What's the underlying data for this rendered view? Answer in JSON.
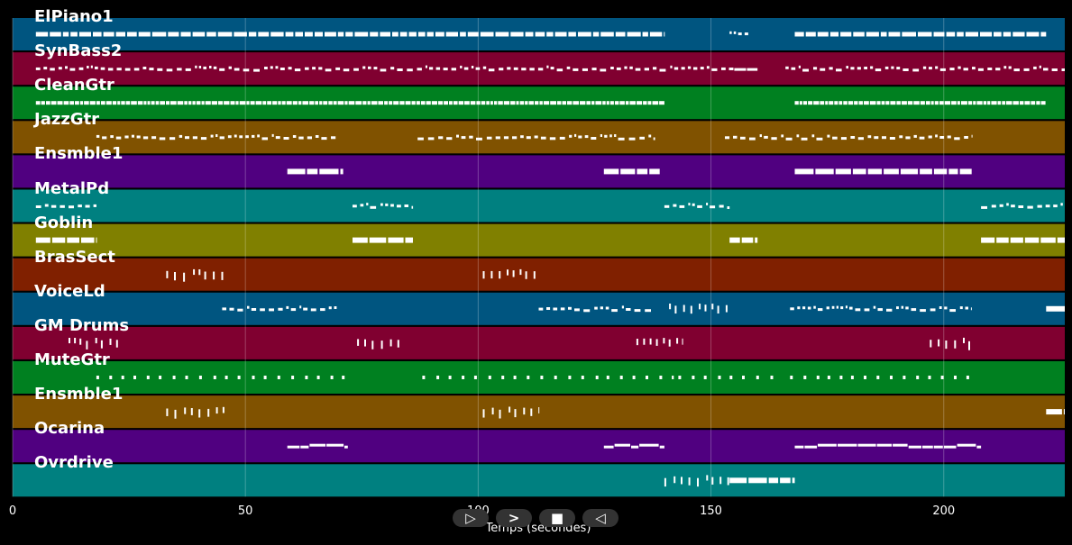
{
  "chart_data": {
    "type": "piano-roll",
    "xlabel": "Temps (secondes)",
    "xlim": [
      0,
      226
    ],
    "xticks": [
      0,
      50,
      100,
      150,
      200
    ],
    "grid": true,
    "tracks": [
      {
        "name": "ElPiano1",
        "color": "#005580",
        "segments": [
          [
            5,
            140,
            "block"
          ],
          [
            154,
            158,
            "dots"
          ],
          [
            168,
            222,
            "block"
          ]
        ]
      },
      {
        "name": "SynBass2",
        "color": "#800030",
        "segments": [
          [
            5,
            155,
            "dots"
          ],
          [
            155,
            160,
            "line"
          ],
          [
            166,
            226,
            "dots"
          ]
        ]
      },
      {
        "name": "CleanGtr",
        "color": "#008020",
        "segments": [
          [
            5,
            140,
            "dense"
          ],
          [
            168,
            222,
            "dense"
          ]
        ]
      },
      {
        "name": "JazzGtr",
        "color": "#805200",
        "segments": [
          [
            18,
            70,
            "dots"
          ],
          [
            87,
            138,
            "dots"
          ],
          [
            153,
            206,
            "dots"
          ]
        ]
      },
      {
        "name": "Ensmble1",
        "color": "#500080",
        "segments": [
          [
            59,
            71,
            "wide"
          ],
          [
            127,
            139,
            "wide"
          ],
          [
            168,
            206,
            "wide"
          ]
        ]
      },
      {
        "name": "MetalPd",
        "color": "#008080",
        "segments": [
          [
            5,
            18,
            "dots"
          ],
          [
            73,
            86,
            "dots"
          ],
          [
            140,
            154,
            "dots"
          ],
          [
            208,
            226,
            "dots"
          ]
        ]
      },
      {
        "name": "Goblin",
        "color": "#808000",
        "segments": [
          [
            5,
            18,
            "wide"
          ],
          [
            73,
            86,
            "wide"
          ],
          [
            154,
            160,
            "wide"
          ],
          [
            208,
            226,
            "wide"
          ]
        ]
      },
      {
        "name": "BrasSect",
        "color": "#802000",
        "segments": [
          [
            33,
            46,
            "sparse"
          ],
          [
            101,
            113,
            "sparse"
          ]
        ]
      },
      {
        "name": "VoiceLd",
        "color": "#005580",
        "segments": [
          [
            45,
            70,
            "dots"
          ],
          [
            113,
            138,
            "dots"
          ],
          [
            141,
            154,
            "sparse"
          ],
          [
            167,
            206,
            "dots"
          ],
          [
            222,
            226,
            "wide"
          ]
        ]
      },
      {
        "name": "GM Drums",
        "color": "#800030",
        "segments": [
          [
            12,
            23,
            "sparse"
          ],
          [
            74,
            84,
            "sparse"
          ],
          [
            134,
            144,
            "sparse"
          ],
          [
            197,
            207,
            "sparse"
          ]
        ]
      },
      {
        "name": "MuteGtr",
        "color": "#008020",
        "segments": [
          [
            18,
            72,
            "spaced"
          ],
          [
            88,
            142,
            "spaced"
          ],
          [
            143,
            165,
            "spaced"
          ],
          [
            167,
            207,
            "spaced"
          ]
        ]
      },
      {
        "name": "Ensmble1",
        "color": "#805200",
        "segments": [
          [
            33,
            46,
            "sparse"
          ],
          [
            101,
            113,
            "sparse"
          ],
          [
            222,
            226,
            "wide"
          ]
        ]
      },
      {
        "name": "Ocarina",
        "color": "#500080",
        "segments": [
          [
            59,
            72,
            "line"
          ],
          [
            127,
            140,
            "line"
          ],
          [
            168,
            208,
            "line"
          ]
        ]
      },
      {
        "name": "Ovrdrive",
        "color": "#008080",
        "segments": [
          [
            140,
            154,
            "sparse"
          ],
          [
            154,
            168,
            "wide"
          ]
        ]
      }
    ]
  },
  "controls": {
    "play_label": "▷",
    "forward_label": ">",
    "stop_label": "■",
    "back_label": "◁"
  }
}
